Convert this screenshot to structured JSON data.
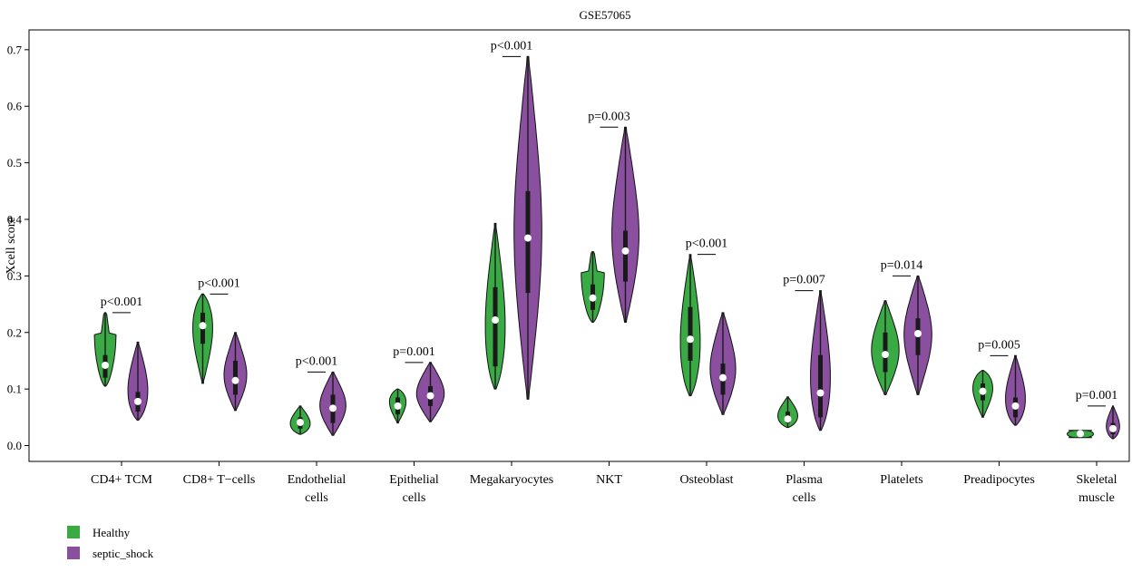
{
  "chart_data": {
    "type": "violin",
    "title": "GSE57065",
    "xlabel": "",
    "ylabel": "Xcell score",
    "ylim": [
      -0.028,
      0.735
    ],
    "yticks": [
      "0.0",
      "0.1",
      "0.2",
      "0.3",
      "0.4",
      "0.5",
      "0.6",
      "0.7"
    ],
    "grid": false,
    "legend_position": "bottom-left",
    "categories": [
      [
        "CD4+ TCM"
      ],
      [
        "CD8+ T−cells"
      ],
      [
        "Endothelial",
        "cells"
      ],
      [
        "Epithelial",
        "cells"
      ],
      [
        "Megakaryocytes"
      ],
      [
        "NKT"
      ],
      [
        "Osteoblast"
      ],
      [
        "Plasma",
        "cells"
      ],
      [
        "Platelets"
      ],
      [
        "Preadipocytes"
      ],
      [
        "Skeletal",
        "muscle"
      ]
    ],
    "series": [
      {
        "name": "Healthy",
        "color": "#3aaa45",
        "stats": [
          {
            "min": 0.105,
            "q1": 0.12,
            "median": 0.142,
            "q3": 0.16,
            "max": 0.235,
            "width": 0.7,
            "shape": "cap"
          },
          {
            "min": 0.11,
            "q1": 0.18,
            "median": 0.212,
            "q3": 0.235,
            "max": 0.268,
            "width": 0.9,
            "shape": "top"
          },
          {
            "min": 0.02,
            "q1": 0.03,
            "median": 0.041,
            "q3": 0.05,
            "max": 0.07,
            "width": 0.9,
            "shape": "bottom"
          },
          {
            "min": 0.04,
            "q1": 0.055,
            "median": 0.07,
            "q3": 0.085,
            "max": 0.1,
            "width": 0.75,
            "shape": "top"
          },
          {
            "min": 0.1,
            "q1": 0.14,
            "median": 0.222,
            "q3": 0.28,
            "max": 0.393,
            "width": 0.9,
            "shape": "bottom"
          },
          {
            "min": 0.218,
            "q1": 0.24,
            "median": 0.261,
            "q3": 0.285,
            "max": 0.343,
            "width": 0.75,
            "shape": "cap"
          },
          {
            "min": 0.088,
            "q1": 0.15,
            "median": 0.188,
            "q3": 0.245,
            "max": 0.338,
            "width": 0.9,
            "shape": "bottom"
          },
          {
            "min": 0.032,
            "q1": 0.04,
            "median": 0.047,
            "q3": 0.06,
            "max": 0.086,
            "width": 0.9,
            "shape": "bottom"
          },
          {
            "min": 0.09,
            "q1": 0.13,
            "median": 0.161,
            "q3": 0.2,
            "max": 0.256,
            "width": 0.9,
            "shape": "mid"
          },
          {
            "min": 0.05,
            "q1": 0.08,
            "median": 0.096,
            "q3": 0.11,
            "max": 0.133,
            "width": 0.9,
            "shape": "top"
          },
          {
            "min": 0.014,
            "q1": 0.017,
            "median": 0.021,
            "q3": 0.025,
            "max": 0.027,
            "width": 0.85,
            "shape": "flat"
          }
        ]
      },
      {
        "name": "septic_shock",
        "color": "#8a4f9f",
        "stats": [
          {
            "min": 0.045,
            "q1": 0.06,
            "median": 0.078,
            "q3": 0.095,
            "max": 0.183,
            "width": 0.9,
            "shape": "bottom"
          },
          {
            "min": 0.062,
            "q1": 0.09,
            "median": 0.115,
            "q3": 0.15,
            "max": 0.2,
            "width": 0.75,
            "shape": "mid"
          },
          {
            "min": 0.018,
            "q1": 0.04,
            "median": 0.066,
            "q3": 0.09,
            "max": 0.13,
            "width": 0.85,
            "shape": "mid"
          },
          {
            "min": 0.042,
            "q1": 0.07,
            "median": 0.088,
            "q3": 0.105,
            "max": 0.147,
            "width": 0.9,
            "shape": "mid"
          },
          {
            "min": 0.082,
            "q1": 0.27,
            "median": 0.367,
            "q3": 0.45,
            "max": 0.688,
            "width": 0.9,
            "shape": "mid"
          },
          {
            "min": 0.218,
            "q1": 0.29,
            "median": 0.344,
            "q3": 0.38,
            "max": 0.563,
            "width": 0.9,
            "shape": "mid"
          },
          {
            "min": 0.055,
            "q1": 0.09,
            "median": 0.12,
            "q3": 0.145,
            "max": 0.235,
            "width": 0.85,
            "shape": "mid"
          },
          {
            "min": 0.027,
            "q1": 0.05,
            "median": 0.093,
            "q3": 0.16,
            "max": 0.274,
            "width": 0.9,
            "shape": "bottom"
          },
          {
            "min": 0.09,
            "q1": 0.16,
            "median": 0.198,
            "q3": 0.225,
            "max": 0.3,
            "width": 0.9,
            "shape": "mid"
          },
          {
            "min": 0.036,
            "q1": 0.05,
            "median": 0.07,
            "q3": 0.085,
            "max": 0.159,
            "width": 0.9,
            "shape": "bottom"
          },
          {
            "min": 0.012,
            "q1": 0.02,
            "median": 0.03,
            "q3": 0.04,
            "max": 0.07,
            "width": 0.6,
            "shape": "bottom"
          }
        ]
      }
    ],
    "annotations": [
      "p<0.001",
      "p<0.001",
      "p<0.001",
      "p=0.001",
      "p<0.001",
      "p=0.003",
      "p<0.001",
      "p=0.007",
      "p=0.014",
      "p=0.005",
      "p=0.001"
    ],
    "legend": [
      {
        "label": "Healthy",
        "color": "#3aaa45"
      },
      {
        "label": "septic_shock",
        "color": "#8a4f9f"
      }
    ]
  }
}
